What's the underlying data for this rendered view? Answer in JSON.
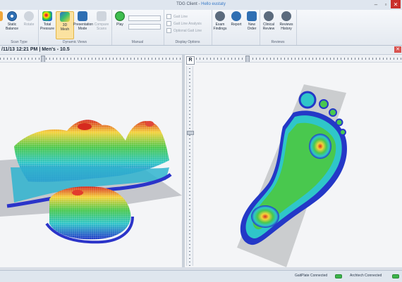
{
  "window": {
    "title_prefix": "TDG Client - ",
    "title_accent": "Hello eustaty"
  },
  "ribbon": {
    "groups": [
      {
        "label": "Scan Type"
      },
      {
        "label": "Dynamic Views"
      },
      {
        "label": "Manual"
      },
      {
        "label": "Display Options"
      },
      {
        "label": "Reviews"
      }
    ],
    "buttons": [
      {
        "label": "Static\nBalance"
      },
      {
        "label": "Rotate"
      },
      {
        "label": "Total\nPressure"
      },
      {
        "label": "3D\nMesh"
      },
      {
        "label": "Presentation\nMode"
      },
      {
        "label": "Compare\nScans"
      },
      {
        "label": "Play"
      },
      {
        "label": "Exam\nFindings"
      },
      {
        "label": "Report"
      },
      {
        "label": "New\nOrder"
      },
      {
        "label": "Clinical\nReview"
      },
      {
        "label": "Reviews\nHistory"
      }
    ],
    "options": [
      "Gait Line",
      "Gait Line Analysis",
      "Optional Gait Line"
    ]
  },
  "info": {
    "scan_label": "/11/13 12:21 PM | Men's - 10.5"
  },
  "right_pane": {
    "side_marker": "R"
  },
  "status": {
    "gaitplate": "GaitPlate Connected",
    "archtech": "Archtech Connected"
  }
}
